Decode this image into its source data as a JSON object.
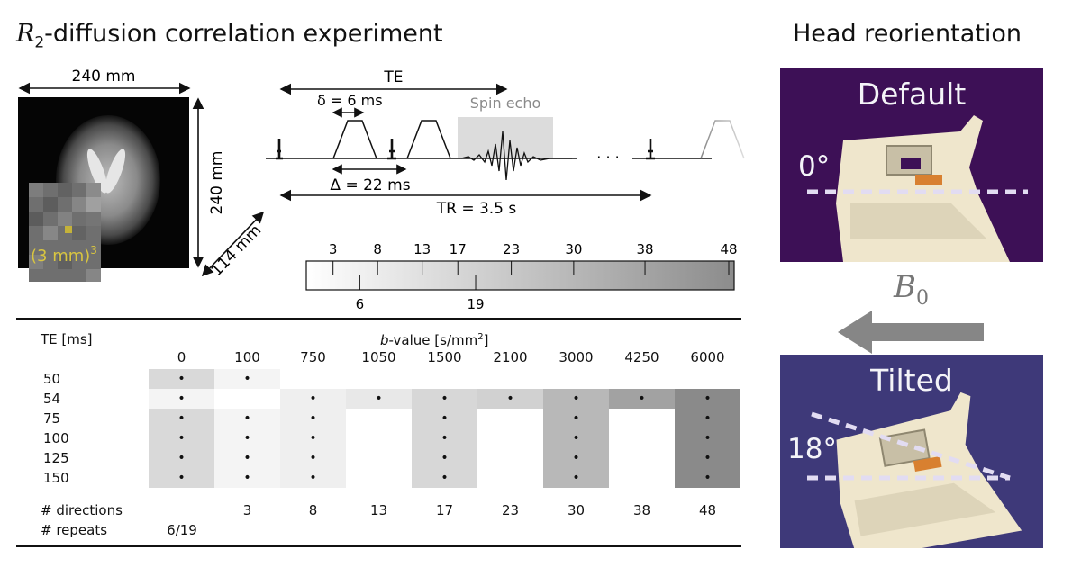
{
  "titles": {
    "left_prefix": "R",
    "left_sub": "2",
    "left_rest": "-diffusion correlation experiment",
    "right": "Head reorientation"
  },
  "fov": {
    "width": "240 mm",
    "height": "240 mm",
    "depth": "114 mm",
    "voxel_prefix": "(3 mm)",
    "voxel_exp": "3"
  },
  "sequence": {
    "te_label": "TE",
    "delta_small": "δ = 6 ms",
    "delta_big": "Δ = 22 ms",
    "spin_echo": "Spin echo",
    "tr_label": "TR = 3.5 s",
    "ellipsis": "· · ·"
  },
  "gradient_scale": {
    "top_ticks": [
      "3",
      "8",
      "13",
      "17",
      "23",
      "30",
      "38",
      "48"
    ],
    "bottom_ticks": [
      "6",
      "19"
    ]
  },
  "table": {
    "te_header": "TE [ms]",
    "b_header_prefix": "b",
    "b_header_mid": "-value [s/mm",
    "b_header_exp": "2",
    "b_header_end": "]",
    "b_values": [
      "0",
      "100",
      "750",
      "1050",
      "1500",
      "2100",
      "3000",
      "4250",
      "6000"
    ],
    "te_values": [
      "50",
      "54",
      "75",
      "100",
      "125",
      "150"
    ],
    "dot": "•",
    "directions_label": "# directions",
    "directions": [
      "",
      "3",
      "8",
      "13",
      "17",
      "23",
      "30",
      "38",
      "48"
    ],
    "repeats_label": "# repeats",
    "repeats": "6/19",
    "matrix": [
      [
        1,
        1,
        0,
        0,
        0,
        0,
        0,
        0,
        0
      ],
      [
        1,
        0,
        1,
        1,
        1,
        1,
        1,
        1,
        1
      ],
      [
        1,
        1,
        1,
        0,
        1,
        0,
        1,
        0,
        1
      ],
      [
        1,
        1,
        1,
        0,
        1,
        0,
        1,
        0,
        1
      ],
      [
        1,
        1,
        1,
        0,
        1,
        0,
        1,
        0,
        1
      ],
      [
        1,
        1,
        1,
        0,
        1,
        0,
        1,
        0,
        1
      ]
    ]
  },
  "field": {
    "symbol": "B",
    "subscript": "0"
  },
  "panels": {
    "default_label": "Default",
    "default_angle": "0°",
    "tilted_label": "Tilted",
    "tilted_angle": "18°",
    "default_color": "#3d1056",
    "tilted_color": "#3e3979"
  }
}
